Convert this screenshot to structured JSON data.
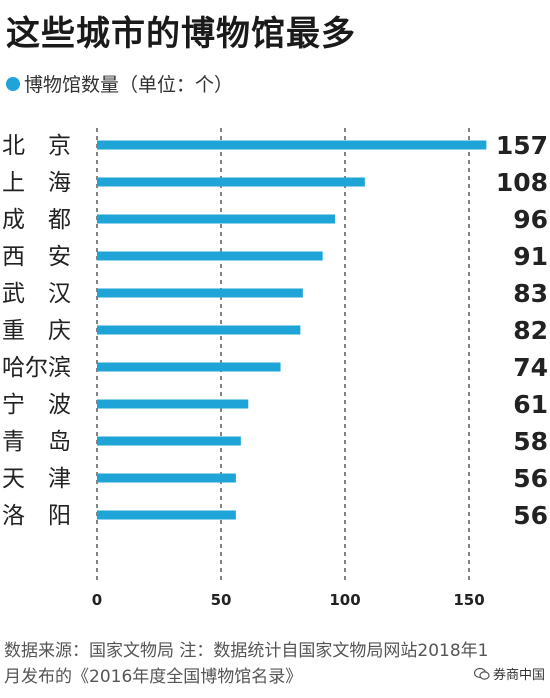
{
  "title": "这些城市的博物馆最多",
  "legend_label": "博物馆数量（单位：个）",
  "accent_color": "#1ea4d6",
  "chart_data": {
    "type": "bar",
    "orientation": "horizontal",
    "categories": [
      "北　京",
      "上　海",
      "成　都",
      "西　安",
      "武　汉",
      "重　庆",
      "哈尔滨",
      "宁　波",
      "青　岛",
      "天　津",
      "洛　阳"
    ],
    "values": [
      157,
      108,
      96,
      91,
      83,
      82,
      74,
      61,
      58,
      56,
      56
    ],
    "value_labels": [
      "157",
      "108",
      "96",
      "91",
      "83",
      "82",
      "74",
      "61",
      "58",
      "56",
      "56"
    ],
    "x_ticks": [
      "0",
      "50",
      "100",
      "150"
    ],
    "x_tick_values": [
      0,
      50,
      100,
      150
    ],
    "xlim": [
      0,
      160
    ],
    "grid": "vertical-dashed",
    "legend_position": "top-left"
  },
  "source_line1": "数据来源：国家文物局  注：数据统计自国家文物局网站2018年1",
  "source_line2": "月发布的《2016年度全国博物馆名录》",
  "watermark": "券商中国"
}
